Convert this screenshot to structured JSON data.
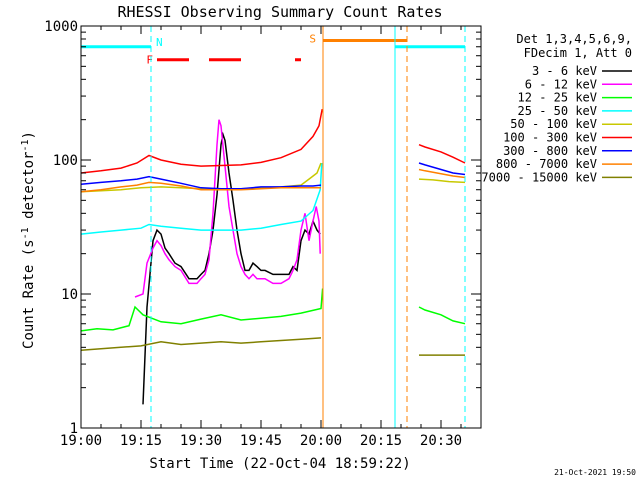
{
  "chart_data": {
    "type": "line",
    "title": "RHESSI Observing Summary Count Rates",
    "xlabel": "Start Time (22-Oct-04 18:59:22)",
    "ylabel_prefix": "Count Rate (s",
    "ylabel_mid": " detector",
    "ylabel_exp": "-1",
    "ylabel_suffix": ")",
    "y_scale": "log",
    "ylim": [
      1,
      1000
    ],
    "xlim_minutes": [
      0,
      100
    ],
    "x_ticks": [
      {
        "label": "19:00",
        "m": 0
      },
      {
        "label": "19:15",
        "m": 15
      },
      {
        "label": "19:30",
        "m": 30
      },
      {
        "label": "19:45",
        "m": 45
      },
      {
        "label": "20:00",
        "m": 60
      },
      {
        "label": "20:15",
        "m": 75
      },
      {
        "label": "20:30",
        "m": 90
      }
    ],
    "y_ticks": [
      {
        "label": "1",
        "v": 1
      },
      {
        "label": "10",
        "v": 10
      },
      {
        "label": "100",
        "v": 100
      },
      {
        "label": "1000",
        "v": 1000
      }
    ],
    "legend_header": [
      "Det 1,3,4,5,6,9,",
      "FDecim 1, Att 0"
    ],
    "legend_position": "right",
    "series": [
      {
        "name": "3 - 6 keV",
        "color": "#000000"
      },
      {
        "name": "6 - 12 keV",
        "color": "#ff00ff"
      },
      {
        "name": "12 - 25 keV",
        "color": "#00ff00"
      },
      {
        "name": "25 - 50 keV",
        "color": "#00ffff"
      },
      {
        "name": "50 - 100 keV",
        "color": "#c8c800"
      },
      {
        "name": "100 - 300 keV",
        "color": "#ff0000"
      },
      {
        "name": "300 - 800 keV",
        "color": "#0000ff"
      },
      {
        "name": "800 - 7000 keV",
        "color": "#ff8000"
      },
      {
        "name": "7000 - 15000 keV",
        "color": "#808000"
      }
    ],
    "data_segments": [
      {
        "from_m": 0,
        "to_m": 60.5
      },
      {
        "from_m": 84.5,
        "to_m": 96
      }
    ],
    "series_values": {
      "3 - 6 keV": [
        [
          15.5,
          1.5
        ],
        [
          16.5,
          8
        ],
        [
          18,
          25
        ],
        [
          19,
          30
        ],
        [
          20,
          28
        ],
        [
          21,
          22
        ],
        [
          22,
          20
        ],
        [
          23.5,
          17
        ],
        [
          25,
          16
        ],
        [
          27,
          13
        ],
        [
          29,
          13
        ],
        [
          30,
          14
        ],
        [
          31,
          15
        ],
        [
          32,
          20
        ],
        [
          33,
          30
        ],
        [
          34,
          55
        ],
        [
          35,
          130
        ],
        [
          35.5,
          155
        ],
        [
          36,
          140
        ],
        [
          37,
          80
        ],
        [
          38,
          50
        ],
        [
          39,
          30
        ],
        [
          40,
          20
        ],
        [
          41,
          15
        ],
        [
          42,
          15
        ],
        [
          43,
          17
        ],
        [
          44,
          16
        ],
        [
          45,
          15
        ],
        [
          46,
          15
        ],
        [
          48,
          14
        ],
        [
          50,
          14
        ],
        [
          52,
          14
        ],
        [
          53,
          16
        ],
        [
          54,
          15
        ],
        [
          55,
          25
        ],
        [
          56,
          30
        ],
        [
          57,
          28
        ],
        [
          58,
          35
        ],
        [
          59,
          30
        ],
        [
          59.8,
          28
        ]
      ],
      "6 - 12 keV": [
        [
          13.5,
          9.5
        ],
        [
          15.5,
          10
        ],
        [
          16.5,
          17
        ],
        [
          18,
          22
        ],
        [
          19,
          25
        ],
        [
          20,
          23
        ],
        [
          21,
          20
        ],
        [
          22,
          18
        ],
        [
          23.5,
          16
        ],
        [
          25,
          15
        ],
        [
          27,
          12
        ],
        [
          29,
          12
        ],
        [
          30,
          13
        ],
        [
          31,
          14
        ],
        [
          32,
          18
        ],
        [
          33,
          40
        ],
        [
          34,
          130
        ],
        [
          34.5,
          200
        ],
        [
          35,
          180
        ],
        [
          36,
          90
        ],
        [
          37,
          45
        ],
        [
          38,
          30
        ],
        [
          39,
          20
        ],
        [
          40,
          16
        ],
        [
          41,
          14
        ],
        [
          42,
          13
        ],
        [
          43,
          14
        ],
        [
          44,
          13
        ],
        [
          46,
          13
        ],
        [
          48,
          12
        ],
        [
          50,
          12
        ],
        [
          52,
          13
        ],
        [
          53,
          15
        ],
        [
          54,
          18
        ],
        [
          55,
          30
        ],
        [
          56,
          40
        ],
        [
          57,
          25
        ],
        [
          58,
          35
        ],
        [
          58.8,
          45
        ],
        [
          59.5,
          35
        ],
        [
          59.8,
          20
        ]
      ],
      "12 - 25 keV": [
        [
          0,
          5.3
        ],
        [
          4,
          5.5
        ],
        [
          8,
          5.4
        ],
        [
          12,
          5.8
        ],
        [
          13.5,
          8
        ],
        [
          15.5,
          7
        ],
        [
          20,
          6.2
        ],
        [
          25,
          6
        ],
        [
          30,
          6.5
        ],
        [
          35,
          7
        ],
        [
          40,
          6.4
        ],
        [
          45,
          6.6
        ],
        [
          50,
          6.8
        ],
        [
          55,
          7.2
        ],
        [
          60,
          7.8
        ],
        [
          60.4,
          11
        ],
        [
          84.5,
          8
        ],
        [
          86,
          7.6
        ],
        [
          90,
          7
        ],
        [
          93,
          6.3
        ],
        [
          96,
          6
        ]
      ],
      "25 - 50 keV": [
        [
          0,
          28
        ],
        [
          5,
          29
        ],
        [
          10,
          30
        ],
        [
          15,
          31
        ],
        [
          17,
          33
        ],
        [
          20,
          32
        ],
        [
          25,
          31
        ],
        [
          30,
          30
        ],
        [
          35,
          30
        ],
        [
          40,
          30
        ],
        [
          45,
          31
        ],
        [
          50,
          33
        ],
        [
          55,
          35
        ],
        [
          58,
          42
        ],
        [
          59.8,
          60
        ],
        [
          60.2,
          95
        ]
      ],
      "50 - 100 keV": [
        [
          0,
          58
        ],
        [
          5,
          59
        ],
        [
          10,
          60
        ],
        [
          15,
          62
        ],
        [
          20,
          63
        ],
        [
          25,
          62
        ],
        [
          30,
          61
        ],
        [
          35,
          61
        ],
        [
          40,
          61
        ],
        [
          45,
          62
        ],
        [
          50,
          63
        ],
        [
          55,
          65
        ],
        [
          57,
          72
        ],
        [
          59,
          80
        ],
        [
          60,
          95
        ],
        [
          84.5,
          72
        ],
        [
          88,
          71
        ],
        [
          92,
          69
        ],
        [
          96,
          68
        ]
      ],
      "100 - 300 keV": [
        [
          0,
          80
        ],
        [
          5,
          83
        ],
        [
          10,
          87
        ],
        [
          14,
          95
        ],
        [
          17,
          108
        ],
        [
          20,
          100
        ],
        [
          25,
          93
        ],
        [
          30,
          90
        ],
        [
          35,
          91
        ],
        [
          40,
          92
        ],
        [
          45,
          96
        ],
        [
          50,
          104
        ],
        [
          55,
          120
        ],
        [
          58,
          150
        ],
        [
          59.5,
          180
        ],
        [
          60.3,
          240
        ],
        [
          84.5,
          130
        ],
        [
          86,
          125
        ],
        [
          90,
          115
        ],
        [
          93,
          105
        ],
        [
          96,
          95
        ]
      ],
      "300 - 800 keV": [
        [
          0,
          66
        ],
        [
          5,
          68
        ],
        [
          10,
          70
        ],
        [
          14,
          72
        ],
        [
          17,
          75
        ],
        [
          20,
          72
        ],
        [
          25,
          67
        ],
        [
          30,
          62
        ],
        [
          35,
          61
        ],
        [
          40,
          61
        ],
        [
          45,
          63
        ],
        [
          50,
          63
        ],
        [
          55,
          64
        ],
        [
          58,
          64
        ],
        [
          60,
          65
        ],
        [
          84.5,
          95
        ],
        [
          86,
          92
        ],
        [
          90,
          85
        ],
        [
          93,
          80
        ],
        [
          96,
          78
        ]
      ],
      "800 - 7000 keV": [
        [
          0,
          58
        ],
        [
          5,
          60
        ],
        [
          10,
          63
        ],
        [
          14,
          65
        ],
        [
          17,
          68
        ],
        [
          20,
          67
        ],
        [
          25,
          64
        ],
        [
          30,
          60
        ],
        [
          35,
          60
        ],
        [
          40,
          60
        ],
        [
          45,
          61
        ],
        [
          50,
          62
        ],
        [
          55,
          62
        ],
        [
          60,
          62
        ],
        [
          84.5,
          85
        ],
        [
          86,
          83
        ],
        [
          90,
          79
        ],
        [
          93,
          76
        ],
        [
          96,
          74
        ]
      ],
      "7000 - 15000 keV": [
        [
          0,
          3.8
        ],
        [
          5,
          3.9
        ],
        [
          10,
          4
        ],
        [
          15,
          4.1
        ],
        [
          20,
          4.4
        ],
        [
          25,
          4.2
        ],
        [
          30,
          4.3
        ],
        [
          35,
          4.4
        ],
        [
          40,
          4.3
        ],
        [
          45,
          4.4
        ],
        [
          50,
          4.5
        ],
        [
          55,
          4.6
        ],
        [
          60,
          4.7
        ],
        [
          84.5,
          3.5
        ],
        [
          88,
          3.5
        ],
        [
          92,
          3.5
        ],
        [
          96,
          3.5
        ]
      ]
    },
    "annotations": {
      "night": [
        {
          "label": "N",
          "from_m": 0,
          "to_m": 17.5,
          "color": "#00ffff",
          "level": 700
        },
        {
          "label": "",
          "from_m": 78.5,
          "to_m": 96,
          "color": "#00ffff",
          "level": 700
        }
      ],
      "saa": [
        {
          "label": "S",
          "from_m": 60.5,
          "to_m": 81.5,
          "color": "#ff8000",
          "level": 780
        }
      ],
      "flare_label": "F",
      "flares": [
        {
          "from_m": 19,
          "to_m": 27,
          "color": "#ff0000",
          "level": 560
        },
        {
          "from_m": 32,
          "to_m": 40,
          "color": "#ff0000",
          "level": 560
        },
        {
          "from_m": 53.5,
          "to_m": 55,
          "color": "#ff0000",
          "level": 560
        }
      ],
      "vlines": [
        {
          "m": 17.5,
          "color": "#00ffff",
          "dash": true
        },
        {
          "m": 60.5,
          "color": "#ff8000",
          "dash": false
        },
        {
          "m": 78.5,
          "color": "#00ffff",
          "dash": false
        },
        {
          "m": 81.5,
          "color": "#ff8000",
          "dash": true
        },
        {
          "m": 96,
          "color": "#00ffff",
          "dash": true
        }
      ]
    },
    "footer_date": "21-Oct-2021 19:50"
  }
}
